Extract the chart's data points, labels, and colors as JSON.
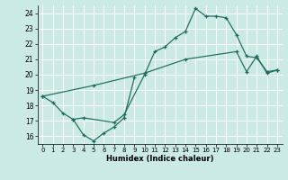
{
  "bg_color": "#cceae4",
  "grid_color": "#ffffff",
  "line_color": "#1a6b5a",
  "xlabel": "Humidex (Indice chaleur)",
  "xlim": [
    -0.5,
    23.5
  ],
  "ylim": [
    15.5,
    24.5
  ],
  "yticks": [
    16,
    17,
    18,
    19,
    20,
    21,
    22,
    23,
    24
  ],
  "line1_x": [
    0,
    1,
    2,
    3,
    4,
    5,
    6,
    7,
    8,
    9
  ],
  "line1_y": [
    18.6,
    18.2,
    17.5,
    17.1,
    16.1,
    15.7,
    16.2,
    16.6,
    17.2,
    19.8
  ],
  "line2_x": [
    3,
    4,
    7,
    8,
    10,
    11,
    12,
    13,
    14,
    15,
    16,
    17,
    18,
    19,
    20,
    21,
    22,
    23
  ],
  "line2_y": [
    17.1,
    17.2,
    16.9,
    17.4,
    20.0,
    21.5,
    21.8,
    22.4,
    22.8,
    24.3,
    23.8,
    23.8,
    23.7,
    22.6,
    21.2,
    21.1,
    20.2,
    20.3
  ],
  "line3_x": [
    0,
    5,
    10,
    14,
    19,
    20,
    21,
    22,
    23
  ],
  "line3_y": [
    18.6,
    19.3,
    20.1,
    21.0,
    21.5,
    20.2,
    21.2,
    20.1,
    20.3
  ]
}
